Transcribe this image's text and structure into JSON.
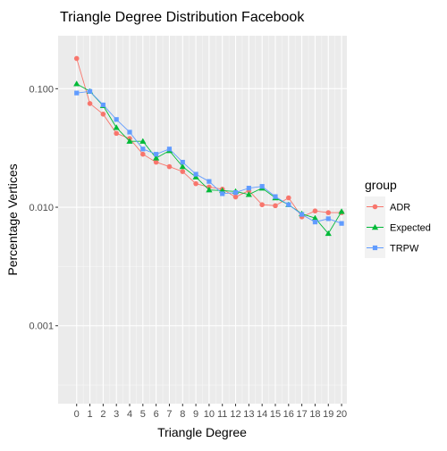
{
  "chart_data": {
    "type": "line",
    "title": "Triangle Degree Distribution Facebook",
    "xlabel": "Triangle Degree",
    "ylabel": "Percentage Vertices",
    "y_scale": "log10",
    "xlim": [
      -1.4,
      20.4
    ],
    "ylim": [
      0.00022,
      0.28
    ],
    "x_ticks": [
      0,
      1,
      2,
      3,
      4,
      5,
      6,
      7,
      8,
      9,
      10,
      11,
      12,
      13,
      14,
      15,
      16,
      17,
      18,
      19,
      20
    ],
    "x_tick_labels": [
      "0",
      "1",
      "2",
      "3",
      "4",
      "5",
      "6",
      "7",
      "8",
      "9",
      "10",
      "11",
      "12",
      "13",
      "14",
      "15",
      "16",
      "17",
      "18",
      "19",
      "20"
    ],
    "y_ticks": [
      0.001,
      0.01,
      0.1
    ],
    "y_tick_labels": [
      "0.001",
      "0.010",
      "0.100"
    ],
    "grid": true,
    "legend": {
      "title": "group",
      "position": "right"
    },
    "x": [
      0,
      1,
      2,
      3,
      4,
      5,
      6,
      7,
      8,
      9,
      10,
      11,
      12,
      13,
      14,
      15,
      16,
      17,
      18,
      19,
      20
    ],
    "series": [
      {
        "name": "ADR",
        "color": "#F8766D",
        "marker": "circle",
        "values": [
          0.18,
          0.075,
          0.061,
          0.042,
          0.038,
          0.028,
          0.024,
          0.022,
          0.02,
          0.0158,
          0.0148,
          0.0142,
          0.0122,
          0.0138,
          0.0105,
          0.0103,
          0.012,
          0.0083,
          0.0093,
          0.009,
          0.009
        ]
      },
      {
        "name": "Expected",
        "color": "#00BA38",
        "marker": "triangle",
        "values": [
          0.11,
          0.095,
          0.072,
          0.047,
          0.036,
          0.036,
          0.026,
          0.03,
          0.022,
          0.018,
          0.014,
          0.0138,
          0.0136,
          0.0128,
          0.0145,
          0.012,
          0.0105,
          0.0088,
          0.0081,
          0.006,
          0.0092
        ]
      },
      {
        "name": "TRPW",
        "color": "#619CFF",
        "marker": "square",
        "values": [
          0.092,
          0.095,
          0.073,
          0.055,
          0.043,
          0.031,
          0.028,
          0.031,
          0.024,
          0.019,
          0.0165,
          0.013,
          0.0133,
          0.0145,
          0.015,
          0.0123,
          0.0105,
          0.0087,
          0.0075,
          0.008,
          0.0073
        ]
      }
    ]
  }
}
